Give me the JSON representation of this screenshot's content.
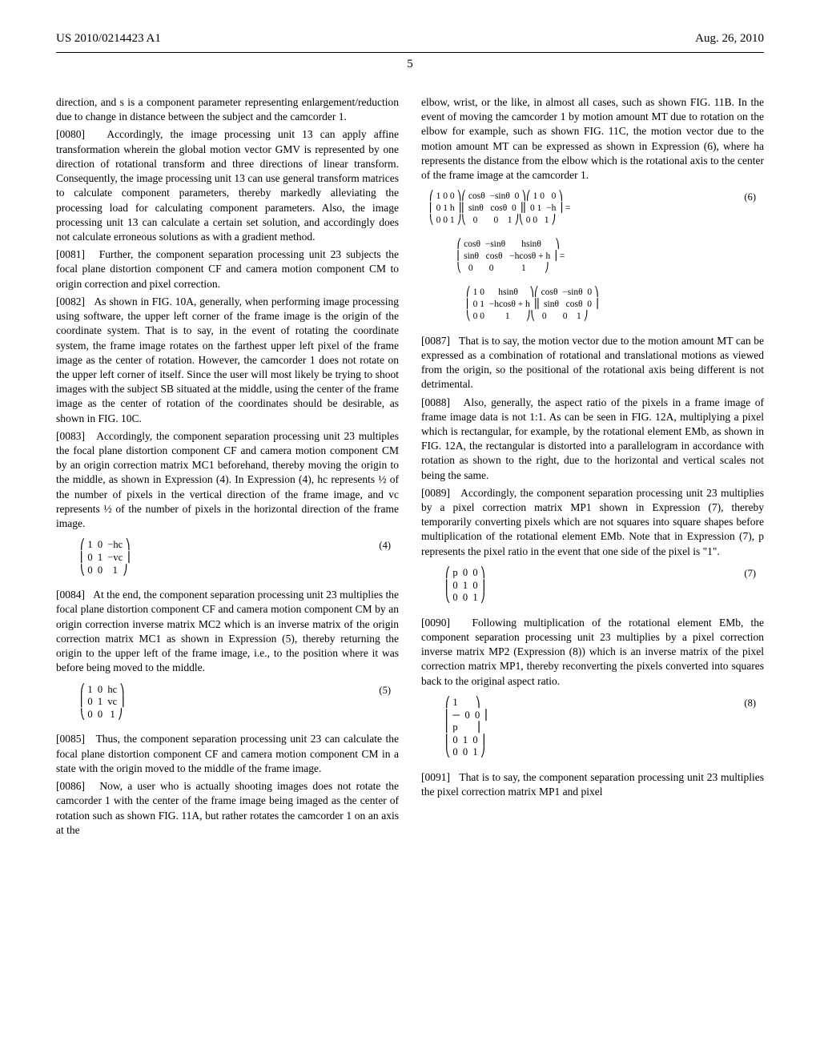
{
  "header": {
    "left": "US 2010/0214423 A1",
    "right": "Aug. 26, 2010",
    "pagenum": "5"
  },
  "left_column": {
    "p_intro": "direction, and s is a component parameter representing enlargement/reduction due to change in distance between the subject and the camcorder 1.",
    "p0080": "Accordingly, the image processing unit 13 can apply affine transformation wherein the global motion vector GMV is represented by one direction of rotational transform and three directions of linear transform. Consequently, the image processing unit 13 can use general transform matrices to calculate component parameters, thereby markedly alleviating the processing load for calculating component parameters. Also, the image processing unit 13 can calculate a certain set solution, and accordingly does not calculate erroneous solutions as with a gradient method.",
    "p0081": "Further, the component separation processing unit 23 subjects the focal plane distortion component CF and camera motion component CM to origin correction and pixel correction.",
    "p0082": "As shown in FIG. 10A, generally, when performing image processing using software, the upper left corner of the frame image is the origin of the coordinate system. That is to say, in the event of rotating the coordinate system, the frame image rotates on the farthest upper left pixel of the frame image as the center of rotation. However, the camcorder 1 does not rotate on the upper left corner of itself. Since the user will most likely be trying to shoot images with the subject SB situated at the middle, using the center of the frame image as the center of rotation of the coordinates should be desirable, as shown in FIG. 10C.",
    "p0083": "Accordingly, the component separation processing unit 23 multiples the focal plane distortion component CF and camera motion component CM by an origin correction matrix MC1 beforehand, thereby moving the origin to the middle, as shown in Expression (4). In Expression (4), hc represents ½ of the number of pixels in the vertical direction of the frame image, and vc represents ½ of the number of pixels in the horizontal direction of the frame image.",
    "eq4": "⎛ 1  0  −hc ⎞\n⎜ 0  1  −vc ⎟\n⎝ 0  0    1  ⎠",
    "eq4_num": "(4)",
    "p0084": "At the end, the component separation processing unit 23 multiplies the focal plane distortion component CF and camera motion component CM by an origin correction inverse matrix MC2 which is an inverse matrix of the origin correction matrix MC1 as shown in Expression (5), thereby returning the origin to the upper left of the frame image, i.e., to the position where it was before being moved to the middle.",
    "eq5": "⎛ 1  0  hc ⎞\n⎜ 0  1  vc ⎟\n⎝ 0  0   1 ⎠",
    "eq5_num": "(5)",
    "p0085": "Thus, the component separation processing unit 23 can calculate the focal plane distortion component CF and camera motion component CM in a state with the origin moved to the middle of the frame image.",
    "p0086": "Now, a user who is actually shooting images does not rotate the camcorder 1 with the center of the frame image being imaged as the center of rotation such as shown FIG. 11A, but rather rotates the camcorder 1 on an axis at the"
  },
  "right_column": {
    "p_intro2": "elbow, wrist, or the like, in almost all cases, such as shown FIG. 11B. In the event of moving the camcorder 1 by motion amount MT due to rotation on the elbow for example, such as shown FIG. 11C, the motion vector due to the motion amount MT can be expressed as shown in Expression (6), where ha represents the distance from the elbow which is the rotational axis to the center of the frame image at the camcorder 1.",
    "eq6": "⎛ 1 0 0 ⎞⎛ cosθ  −sinθ  0 ⎞⎛ 1 0   0 ⎞\n⎜ 0 1 h ⎟⎜ sinθ   cosθ  0 ⎟⎜ 0 1  −h ⎟ =\n⎝ 0 0 1 ⎠⎝   0       0    1 ⎠⎝ 0 0   1 ⎠\n\n            ⎛ cosθ  −sinθ       hsinθ      ⎞\n            ⎜ sinθ   cosθ   −hcosθ + h ⎟ =\n            ⎝   0       0            1        ⎠\n\n                ⎛ 1 0      hsinθ     ⎞⎛ cosθ  −sinθ  0 ⎞\n                ⎜ 0 1  −hcosθ + h ⎟⎜ sinθ   cosθ  0 ⎟\n                ⎝ 0 0         1       ⎠⎝   0       0    1 ⎠",
    "eq6_num": "(6)",
    "p0087": "That is to say, the motion vector due to the motion amount MT can be expressed as a combination of rotational and translational motions as viewed from the origin, so the positional of the rotational axis being different is not detrimental.",
    "p0088": "Also, generally, the aspect ratio of the pixels in a frame image of frame image data is not 1:1. As can be seen in FIG. 12A, multiplying a pixel which is rectangular, for example, by the rotational element EMb, as shown in FIG. 12A, the rectangular is distorted into a parallelogram in accordance with rotation as shown to the right, due to the horizontal and vertical scales not being the same.",
    "p0089": "Accordingly, the component separation processing unit 23 multiplies by a pixel correction matrix MP1 shown in Expression (7), thereby temporarily converting pixels which are not squares into square shapes before multiplication of the rotational element EMb. Note that in Expression (7), p represents the pixel ratio in the event that one side of the pixel is \"1\".",
    "eq7": "⎛ p  0  0 ⎞\n⎜ 0  1  0 ⎟\n⎝ 0  0  1 ⎠",
    "eq7_num": "(7)",
    "p0090": "Following multiplication of the rotational element EMb, the component separation processing unit 23 multiplies by a pixel correction inverse matrix MP2 (Expression (8)) which is an inverse matrix of the pixel correction matrix MP1, thereby reconverting the pixels converted into squares back to the original aspect ratio.",
    "eq8": "⎛ 1       ⎞\n⎜ ─  0  0 ⎟\n⎜ p       ⎟\n⎜ 0  1  0 ⎟\n⎝ 0  0  1 ⎠",
    "eq8_num": "(8)",
    "p0091": "That is to say, the component separation processing unit 23 multiplies the pixel correction matrix MP1 and pixel"
  }
}
